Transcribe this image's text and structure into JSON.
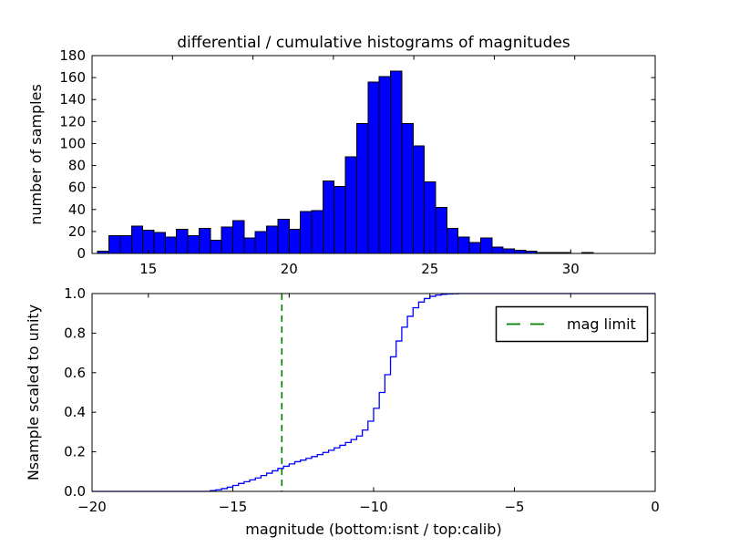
{
  "figure": {
    "background": "#ffffff",
    "axes_color": "#000000",
    "tick_label_fontsize": 15,
    "label_fontsize": 16,
    "title_fontsize": 17
  },
  "chart_data": [
    {
      "type": "bar",
      "subplot": "top",
      "title": "differential / cumulative histograms of magnitudes",
      "ylabel": "number of samples",
      "xlim": [
        13,
        33
      ],
      "ylim": [
        0,
        180
      ],
      "grid": false,
      "xticks": [
        15,
        20,
        25,
        30
      ],
      "xtick_labels": [
        "15",
        "20",
        "25",
        "30"
      ],
      "yticks": [
        0,
        20,
        40,
        60,
        80,
        100,
        120,
        140,
        160,
        180
      ],
      "ytick_labels": [
        "0",
        "20",
        "40",
        "60",
        "80",
        "100",
        "120",
        "140",
        "160",
        "180"
      ],
      "bin_start": 13.2,
      "bin_width": 0.4,
      "values": [
        2,
        16,
        16,
        25,
        21,
        19,
        15,
        22,
        16,
        23,
        12,
        24,
        30,
        14,
        20,
        25,
        31,
        22,
        38,
        39,
        66,
        61,
        88,
        118,
        156,
        161,
        166,
        118,
        98,
        65,
        42,
        23,
        15,
        10,
        14,
        6,
        4,
        3,
        2,
        1,
        1,
        1,
        0,
        1
      ],
      "bar_color": "#0000ff",
      "bar_edge_color": "#000000"
    },
    {
      "type": "line",
      "subplot": "bottom",
      "ylabel": "Nsample scaled to unity",
      "xlabel": "magnitude (bottom:isnt / top:calib)",
      "xlim": [
        -20,
        0
      ],
      "ylim": [
        0.0,
        1.0
      ],
      "grid": false,
      "xticks": [
        -20,
        -15,
        -10,
        -5,
        0
      ],
      "xtick_labels": [
        "−20",
        "−15",
        "−10",
        "−5",
        "0"
      ],
      "yticks": [
        0.0,
        0.2,
        0.4,
        0.6,
        0.8,
        1.0
      ],
      "ytick_labels": [
        "0.0",
        "0.2",
        "0.4",
        "0.6",
        "0.8",
        "1.0"
      ],
      "line_color": "#0000ff",
      "line_style": "step-cumulative",
      "steps": [
        [
          -15.8,
          0.004
        ],
        [
          -15.6,
          0.008
        ],
        [
          -15.4,
          0.014
        ],
        [
          -15.2,
          0.021
        ],
        [
          -15.0,
          0.03
        ],
        [
          -14.8,
          0.04
        ],
        [
          -14.6,
          0.049
        ],
        [
          -14.4,
          0.058
        ],
        [
          -14.2,
          0.068
        ],
        [
          -14.0,
          0.08
        ],
        [
          -13.8,
          0.092
        ],
        [
          -13.6,
          0.104
        ],
        [
          -13.4,
          0.116
        ],
        [
          -13.2,
          0.127
        ],
        [
          -13.0,
          0.139
        ],
        [
          -12.8,
          0.15
        ],
        [
          -12.6,
          0.158
        ],
        [
          -12.4,
          0.167
        ],
        [
          -12.2,
          0.176
        ],
        [
          -12.0,
          0.186
        ],
        [
          -11.8,
          0.197
        ],
        [
          -11.6,
          0.208
        ],
        [
          -11.4,
          0.22
        ],
        [
          -11.2,
          0.233
        ],
        [
          -11.0,
          0.247
        ],
        [
          -10.8,
          0.262
        ],
        [
          -10.6,
          0.28
        ],
        [
          -10.4,
          0.31
        ],
        [
          -10.2,
          0.355
        ],
        [
          -10.0,
          0.42
        ],
        [
          -9.8,
          0.5
        ],
        [
          -9.6,
          0.59
        ],
        [
          -9.4,
          0.68
        ],
        [
          -9.2,
          0.76
        ],
        [
          -9.0,
          0.83
        ],
        [
          -8.8,
          0.885
        ],
        [
          -8.6,
          0.928
        ],
        [
          -8.4,
          0.957
        ],
        [
          -8.2,
          0.975
        ],
        [
          -8.0,
          0.986
        ],
        [
          -7.8,
          0.992
        ],
        [
          -7.6,
          0.996
        ],
        [
          -7.4,
          0.998
        ],
        [
          -7.2,
          0.999
        ],
        [
          -7.0,
          1.0
        ]
      ],
      "mag_limit_x": -13.26,
      "mag_limit_color": "#008000",
      "legend": {
        "label": "mag limit",
        "position": "upper right",
        "sample_color": "#008000"
      }
    }
  ]
}
